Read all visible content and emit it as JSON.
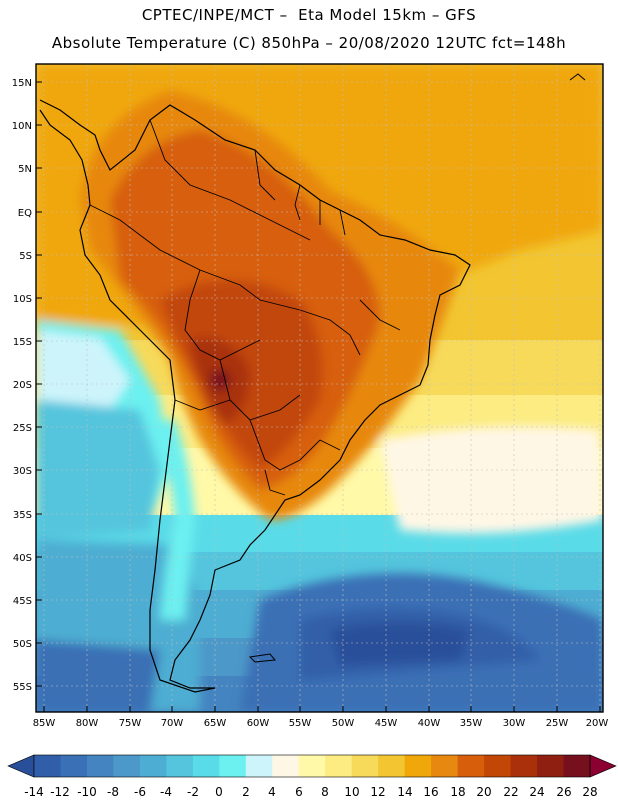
{
  "header": {
    "line1": "CPTEC/INPE/MCT –  Eta Model 15km – GFS",
    "line2": "Absolute Temperature (C) 850hPa – 20/08/2020 12UTC fct=148h"
  },
  "axes": {
    "lat_labels": [
      "15N",
      "10N",
      "5N",
      "EQ",
      "5S",
      "10S",
      "15S",
      "20S",
      "25S",
      "30S",
      "35S",
      "40S",
      "45S",
      "50S",
      "55S"
    ],
    "lon_labels": [
      "85W",
      "80W",
      "75W",
      "70W",
      "65W",
      "60W",
      "55W",
      "50W",
      "45W",
      "40W",
      "35W",
      "30W",
      "25W",
      "20W"
    ]
  },
  "colorbar": {
    "labels": [
      "-14",
      "-12",
      "-10",
      "-8",
      "-6",
      "-4",
      "-2",
      "0",
      "2",
      "4",
      "6",
      "8",
      "10",
      "12",
      "14",
      "16",
      "18",
      "20",
      "22",
      "24",
      "26",
      "28"
    ],
    "colors": [
      "#2a4f9a",
      "#305ea8",
      "#3a70b5",
      "#4484c0",
      "#4c98c8",
      "#4eadd2",
      "#54c5dd",
      "#5adbe8",
      "#6cf0f0",
      "#cdf4fb",
      "#fff7e6",
      "#fff9a8",
      "#fcec82",
      "#f7da5a",
      "#f2c531",
      "#f0a70a",
      "#e78810",
      "#d75f0b",
      "#c24707",
      "#a9300b",
      "#8f1f10",
      "#76101c",
      "#8b0030"
    ]
  }
}
